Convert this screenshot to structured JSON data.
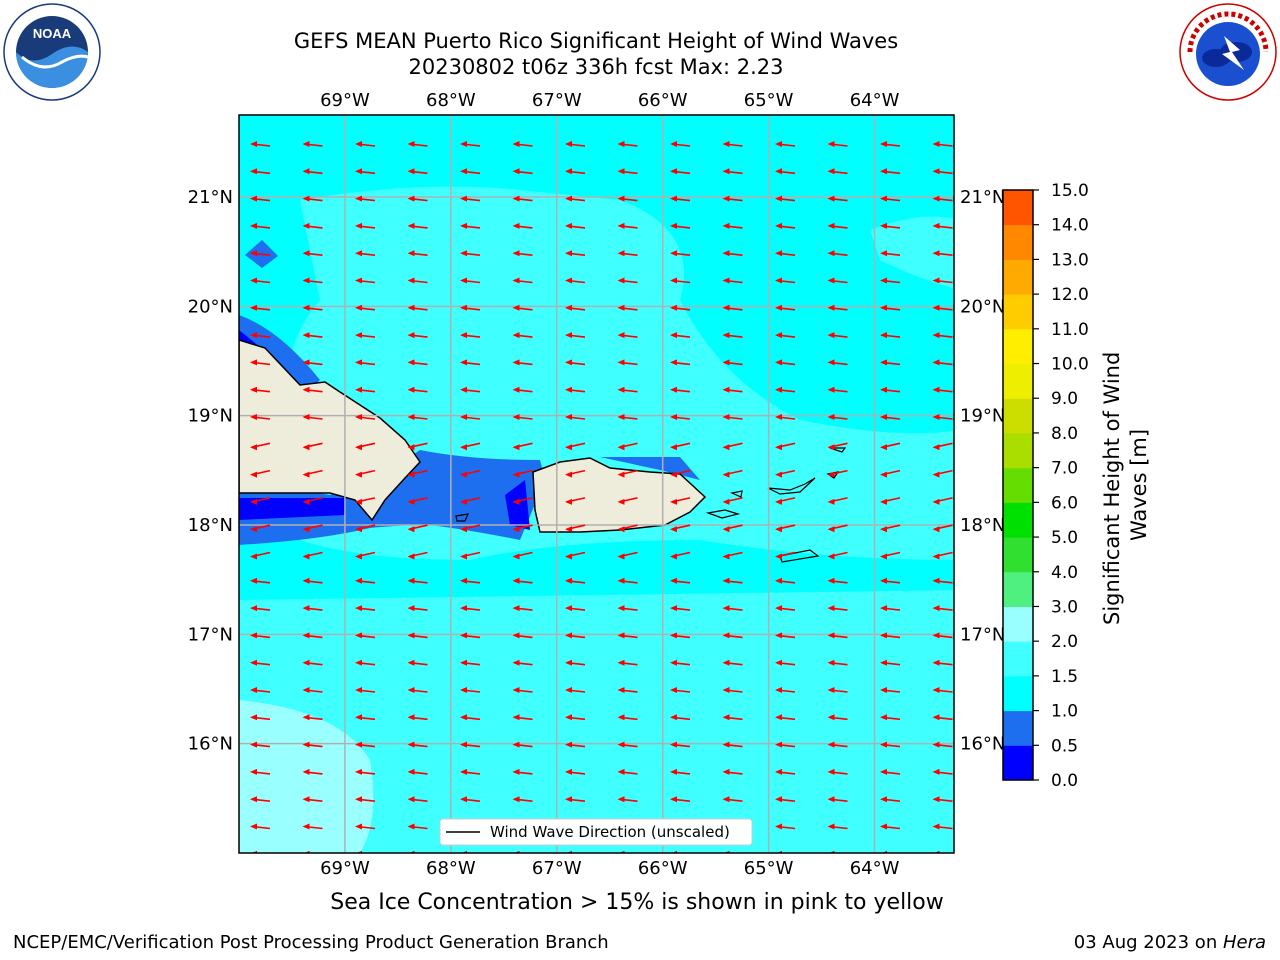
{
  "title": {
    "line1": "GEFS MEAN Puerto Rico Significant Height of Wind Waves",
    "line2": "20230802 t06z 336h fcst   Max: 2.23"
  },
  "logos": {
    "noaa": {
      "name": "noaa-logo",
      "text": "NOAA",
      "ring": "NATIONAL OCEANIC AND ATMOSPHERIC ADMINISTRATION · U.S. DEPARTMENT OF COMMERCE"
    },
    "nws": {
      "name": "nws-logo",
      "ring": "NATIONAL WEATHER SERVICE"
    }
  },
  "map": {
    "lon_labels": [
      "69°W",
      "68°W",
      "67°W",
      "66°W",
      "65°W",
      "64°W"
    ],
    "lon_values": [
      -69,
      -68,
      -67,
      -66,
      -65,
      -64
    ],
    "lat_labels": [
      "21°N",
      "20°N",
      "19°N",
      "18°N",
      "17°N",
      "16°N"
    ],
    "lat_values": [
      21,
      20,
      19,
      18,
      17,
      16
    ],
    "lon_range": [
      -70,
      -63.25
    ],
    "lat_range": [
      15.0,
      21.75
    ],
    "wind_wave_direction": "toward west (easterly trade winds)",
    "legend": "Wind Wave Direction (unscaled)",
    "arrow_color": "#ff0000",
    "land_color": "#eeecdb",
    "grid_color": "#b0b0b0"
  },
  "colorbar": {
    "label": "Significant Height of Wind Waves [m]",
    "ticks": [
      "15.0",
      "14.0",
      "13.0",
      "12.0",
      "11.0",
      "10.0",
      "9.0",
      "8.0",
      "7.0",
      "6.0",
      "5.0",
      "4.0",
      "3.0",
      "2.0",
      "1.5",
      "1.0",
      "0.5",
      "0.0"
    ],
    "colors": [
      "#0000ff",
      "#1e6ff0",
      "#00ffff",
      "#40ffff",
      "#99ffff",
      "#50f080",
      "#30e030",
      "#00e000",
      "#66dd00",
      "#aadd00",
      "#ccdd00",
      "#eeee00",
      "#ffee00",
      "#ffcc00",
      "#ffaa00",
      "#ff8800",
      "#ff5500",
      "#ff2200",
      "#ff0000"
    ]
  },
  "subtitle": "Sea Ice Concentration > 15% is shown in pink to yellow",
  "footer": {
    "left": "NCEP/EMC/Verification Post Processing Product Generation Branch",
    "right_prefix": "03 Aug 2023 on ",
    "right_host": "Hera"
  }
}
